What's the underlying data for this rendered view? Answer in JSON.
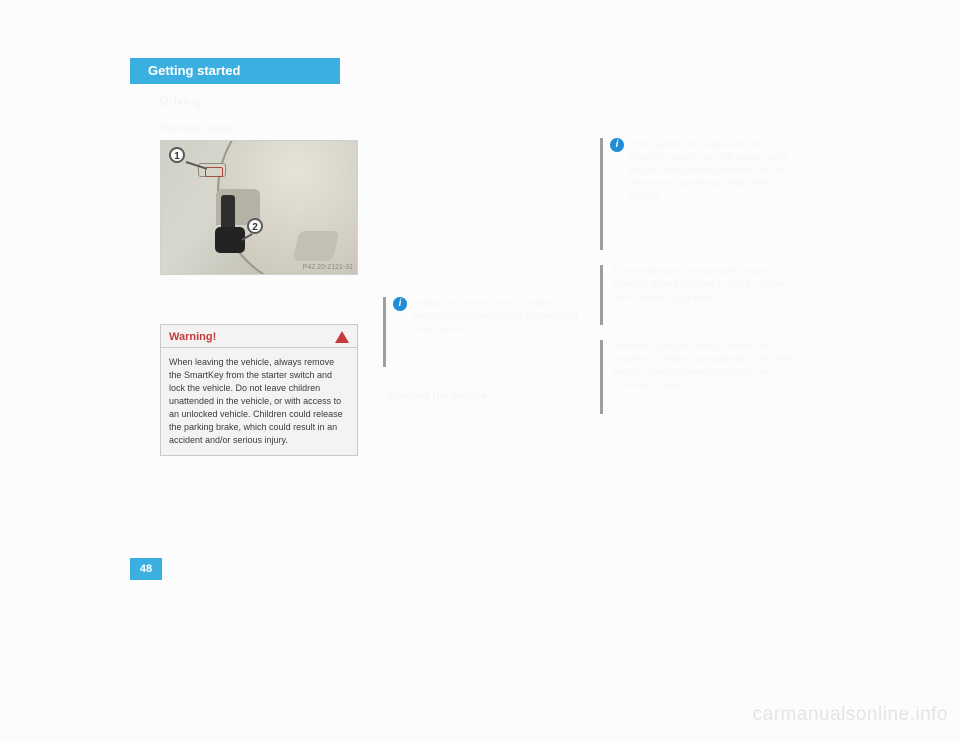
{
  "header": {
    "band": "Getting started",
    "sub": "Driving",
    "section": "Parking brake"
  },
  "image": {
    "marker1": "1",
    "marker2": "2",
    "code": "P42.20-2121-31"
  },
  "legend": {
    "row1_num": "1",
    "row1_text": "Release handle",
    "row2_num": "2",
    "row2_text": "Parking brake pedal"
  },
  "warning": {
    "title": "Warning!",
    "body": "When leaving the vehicle, always remove the SmartKey from the starter switch and lock the vehicle. Do not leave children unattended in the vehicle, or with access to an unlocked vehicle. Children could release the parking brake, which could result in an accident and/or serious injury."
  },
  "col2": {
    "step1": "Step firmly on parking brake pedal 2.",
    "step1b": "When the engine is running, the indicator lamp (USA only) or (Canada only) in the instrument cluster comes on.",
    "note": "Getting the most out of your vehicle means driving it responsibly and ensuring proper service.",
    "heading": "Starting the engine",
    "body2": "Before starting the engine, ensure that the transmission is in park position P and the parking brake is applied."
  },
  "col3": {
    "noteA": "When starting the engine with the SmartKey, insert it into the starter switch and turn to the desired position. Do not depress the accelerator pedal while starting.",
    "noteB": "If the engine does not start after several attempts, allow the starter to cool for a brief period before trying again.",
    "noteC": "Once the engine is running, release the SmartKey. It returns automatically to the drive position. Check all warning lamps in the instrument cluster."
  },
  "pagenum": "48",
  "footer": "",
  "watermark": "carmanualsonline.info",
  "info_glyph": "i",
  "colors": {
    "band_bg": "#3bb0e0",
    "warn_title": "#c63a3a",
    "note_bar": "#9e9e9e",
    "info_bg": "#1f8ed6"
  }
}
